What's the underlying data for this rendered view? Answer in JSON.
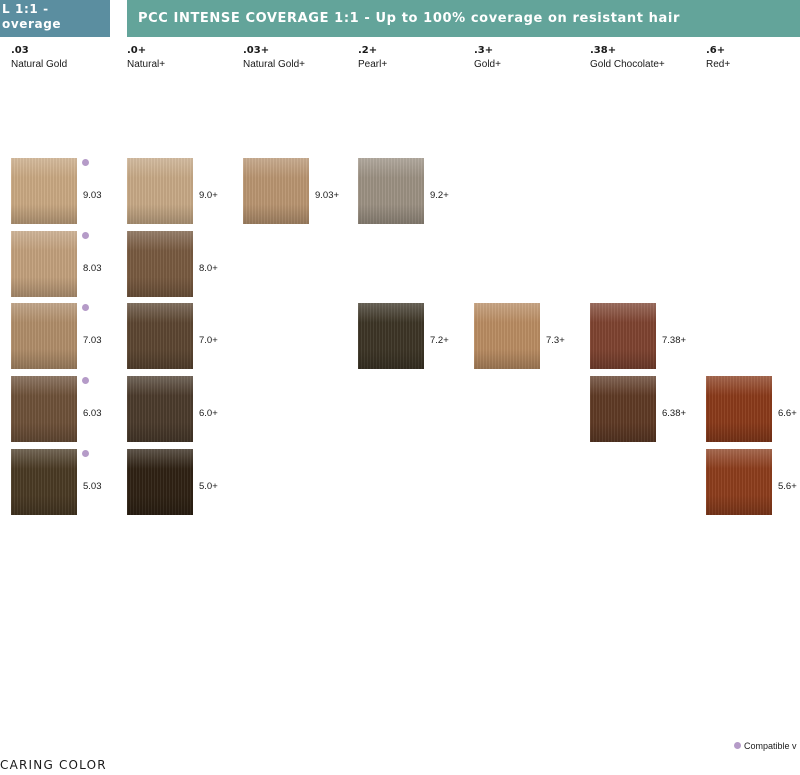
{
  "banners": {
    "left_line1": "L 1:1 -",
    "left_line2": "overage",
    "right": "PCC INTENSE COVERAGE 1:1 - Up to 100% coverage on resistant hair"
  },
  "columns": [
    {
      "code": ".03",
      "name": "Natural Gold"
    },
    {
      "code": ".0+",
      "name": "Natural+"
    },
    {
      "code": ".03+",
      "name": "Natural Gold+"
    },
    {
      "code": ".2+",
      "name": "Pearl+"
    },
    {
      "code": ".3+",
      "name": "Gold+"
    },
    {
      "code": ".38+",
      "name": "Gold Chocolate+"
    },
    {
      "code": ".6+",
      "name": "Red+"
    }
  ],
  "swatches": [
    {
      "col": 0,
      "row": 0,
      "label": "9.03",
      "color": "#c9a882",
      "compatible": true
    },
    {
      "col": 0,
      "row": 1,
      "label": "8.03",
      "color": "#c2a07c",
      "compatible": true
    },
    {
      "col": 0,
      "row": 2,
      "label": "7.03",
      "color": "#b08d69",
      "compatible": true
    },
    {
      "col": 0,
      "row": 3,
      "label": "6.03",
      "color": "#6e5139",
      "compatible": true
    },
    {
      "col": 0,
      "row": 4,
      "label": "5.03",
      "color": "#4a3a24",
      "compatible": true
    },
    {
      "col": 1,
      "row": 0,
      "label": "9.0+",
      "color": "#c7a986",
      "compatible": false
    },
    {
      "col": 1,
      "row": 1,
      "label": "8.0+",
      "color": "#785a40",
      "compatible": false
    },
    {
      "col": 1,
      "row": 2,
      "label": "7.0+",
      "color": "#5c4631",
      "compatible": false
    },
    {
      "col": 1,
      "row": 3,
      "label": "6.0+",
      "color": "#4b3b2c",
      "compatible": false
    },
    {
      "col": 1,
      "row": 4,
      "label": "5.0+",
      "color": "#2f2214",
      "compatible": false
    },
    {
      "col": 2,
      "row": 0,
      "label": "9.03+",
      "color": "#b99571",
      "compatible": false
    },
    {
      "col": 3,
      "row": 0,
      "label": "9.2+",
      "color": "#9c9183",
      "compatible": false
    },
    {
      "col": 3,
      "row": 2,
      "label": "7.2+",
      "color": "#3d3526",
      "compatible": false
    },
    {
      "col": 4,
      "row": 2,
      "label": "7.3+",
      "color": "#b98c62",
      "compatible": false
    },
    {
      "col": 5,
      "row": 2,
      "label": "7.38+",
      "color": "#7e4330",
      "compatible": false
    },
    {
      "col": 5,
      "row": 3,
      "label": "6.38+",
      "color": "#5f3a25",
      "compatible": false
    },
    {
      "col": 6,
      "row": 3,
      "label": "6.6+",
      "color": "#8a3a1a",
      "compatible": false
    },
    {
      "col": 6,
      "row": 4,
      "label": "5.6+",
      "color": "#8c3d1c",
      "compatible": false
    }
  ],
  "footer": {
    "brand": "CARING COLOR",
    "legend": "Compatible v"
  },
  "colors": {
    "dot": "#b59bc8",
    "banner_left": "#5b8ea0",
    "banner_right": "#63a49a"
  }
}
